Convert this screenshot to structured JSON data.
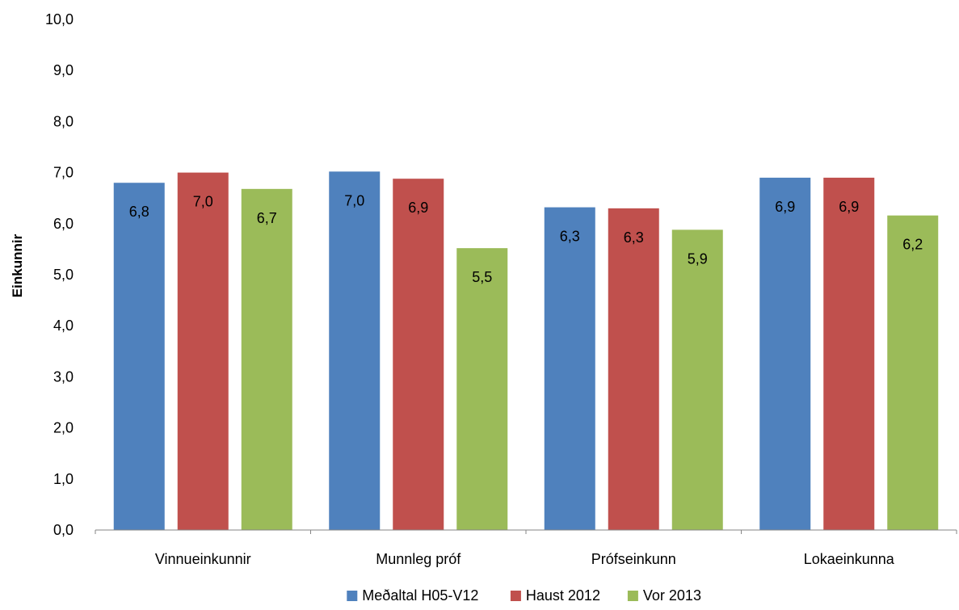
{
  "chart_data": {
    "type": "bar",
    "ylabel": "Einkunnir",
    "ylim": [
      0,
      10
    ],
    "yticks": [
      "0,0",
      "1,0",
      "2,0",
      "3,0",
      "4,0",
      "5,0",
      "6,0",
      "7,0",
      "8,0",
      "9,0",
      "10,0"
    ],
    "categories": [
      "Vinnueinkunnir",
      "Munnleg próf",
      "Prófseinkunn",
      "Lokaeinkunna"
    ],
    "series": [
      {
        "name": "Meðaltal H05-V12",
        "color": "#4f81bd",
        "values": [
          6.8,
          7.02,
          6.32,
          6.9
        ],
        "labels": [
          "6,8",
          "7,0",
          "6,3",
          "6,9"
        ]
      },
      {
        "name": "Haust 2012",
        "color": "#c0504d",
        "values": [
          7.0,
          6.88,
          6.3,
          6.9
        ],
        "labels": [
          "7,0",
          "6,9",
          "6,3",
          "6,9"
        ]
      },
      {
        "name": "Vor 2013",
        "color": "#9bbb59",
        "values": [
          6.68,
          5.52,
          5.88,
          6.16
        ],
        "labels": [
          "6,7",
          "5,5",
          "5,9",
          "6,2"
        ]
      }
    ],
    "grid": false,
    "legend_position": "bottom"
  }
}
